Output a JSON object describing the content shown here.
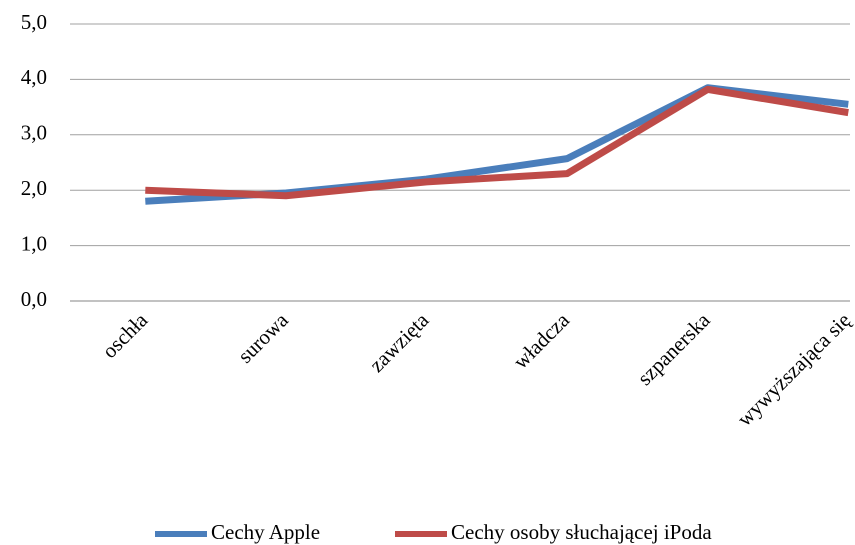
{
  "chart_data": {
    "type": "line",
    "categories": [
      "oschła",
      "surowa",
      "zawzięta",
      "władcza",
      "szpanerska",
      "wywyższająca się"
    ],
    "series": [
      {
        "name": "Cechy Apple",
        "color": "#4a7ebb",
        "values": [
          1.8,
          1.95,
          2.2,
          2.57,
          3.85,
          3.55
        ]
      },
      {
        "name": "Cechy osoby słuchającej iPoda",
        "color": "#be4b48",
        "values": [
          2.0,
          1.9,
          2.15,
          2.3,
          3.82,
          3.4
        ]
      }
    ],
    "ylim": [
      0,
      5
    ],
    "yticks": [
      {
        "value": 0,
        "label": "0,0"
      },
      {
        "value": 1,
        "label": "1,0"
      },
      {
        "value": 2,
        "label": "2,0"
      },
      {
        "value": 3,
        "label": "3,0"
      },
      {
        "value": 4,
        "label": "4,0"
      },
      {
        "value": 5,
        "label": "5,0"
      }
    ],
    "grid": true,
    "legend": "bottom"
  }
}
